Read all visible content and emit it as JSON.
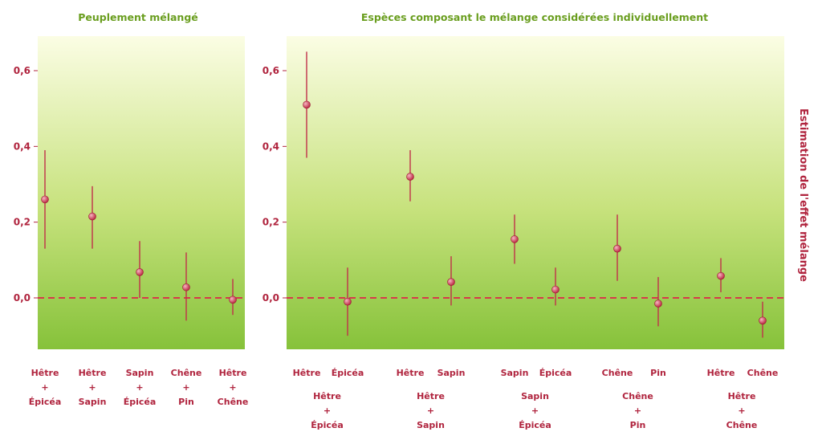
{
  "titles": {
    "left": "Peuplement mélangé",
    "right": "Espèces composant le mélange considérées individuellement"
  },
  "ylabel": "Estimation de l'effet mélange",
  "yticks": [
    "0,0",
    "0,2",
    "0,4",
    "0,6"
  ],
  "colors": {
    "point": "#c0304a",
    "line": "#c0304a",
    "zero_line": "#d63a4a",
    "panel_top": "#fbfde4",
    "panel_bottom": "#8cc63c"
  },
  "chart_data": [
    {
      "type": "scatter",
      "title": "Peuplement mélangé",
      "ylim": [
        -0.13,
        0.7
      ],
      "points": [
        {
          "label": [
            "Hêtre",
            "+",
            "Épicéa"
          ],
          "y": 0.26,
          "lo": 0.13,
          "hi": 0.39
        },
        {
          "label": [
            "Hêtre",
            "+",
            "Sapin"
          ],
          "y": 0.215,
          "lo": 0.13,
          "hi": 0.295
        },
        {
          "label": [
            "Sapin",
            "+",
            "Épicéa"
          ],
          "y": 0.068,
          "lo": 0.0,
          "hi": 0.15
        },
        {
          "label": [
            "Chêne",
            "+",
            "Pin"
          ],
          "y": 0.028,
          "lo": -0.06,
          "hi": 0.12
        },
        {
          "label": [
            "Hêtre",
            "+",
            "Chêne"
          ],
          "y": -0.005,
          "lo": -0.045,
          "hi": 0.05
        }
      ]
    },
    {
      "type": "scatter",
      "title": "Espèces composant le mélange considérées individuellement",
      "ylim": [
        -0.13,
        0.7
      ],
      "groups": [
        {
          "label": [
            "Hêtre",
            "+",
            "Épicéa"
          ],
          "species": [
            {
              "name": "Hêtre",
              "y": 0.51,
              "lo": 0.37,
              "hi": 0.65
            },
            {
              "name": "Épicéa",
              "y": -0.01,
              "lo": -0.1,
              "hi": 0.08
            }
          ]
        },
        {
          "label": [
            "Hêtre",
            "+",
            "Sapin"
          ],
          "species": [
            {
              "name": "Hêtre",
              "y": 0.32,
              "lo": 0.255,
              "hi": 0.39
            },
            {
              "name": "Sapin",
              "y": 0.042,
              "lo": -0.02,
              "hi": 0.11
            }
          ]
        },
        {
          "label": [
            "Sapin",
            "+",
            "Épicéa"
          ],
          "species": [
            {
              "name": "Sapin",
              "y": 0.155,
              "lo": 0.09,
              "hi": 0.22
            },
            {
              "name": "Épicéa",
              "y": 0.022,
              "lo": -0.02,
              "hi": 0.08
            }
          ]
        },
        {
          "label": [
            "Chêne",
            "+",
            "Pin"
          ],
          "species": [
            {
              "name": "Chêne",
              "y": 0.13,
              "lo": 0.045,
              "hi": 0.22
            },
            {
              "name": "Pin",
              "y": -0.015,
              "lo": -0.075,
              "hi": 0.055
            }
          ]
        },
        {
          "label": [
            "Hêtre",
            "+",
            "Chêne"
          ],
          "species": [
            {
              "name": "Hêtre",
              "y": 0.058,
              "lo": 0.015,
              "hi": 0.105
            },
            {
              "name": "Chêne",
              "y": -0.06,
              "lo": -0.105,
              "hi": -0.01
            }
          ]
        }
      ]
    }
  ]
}
